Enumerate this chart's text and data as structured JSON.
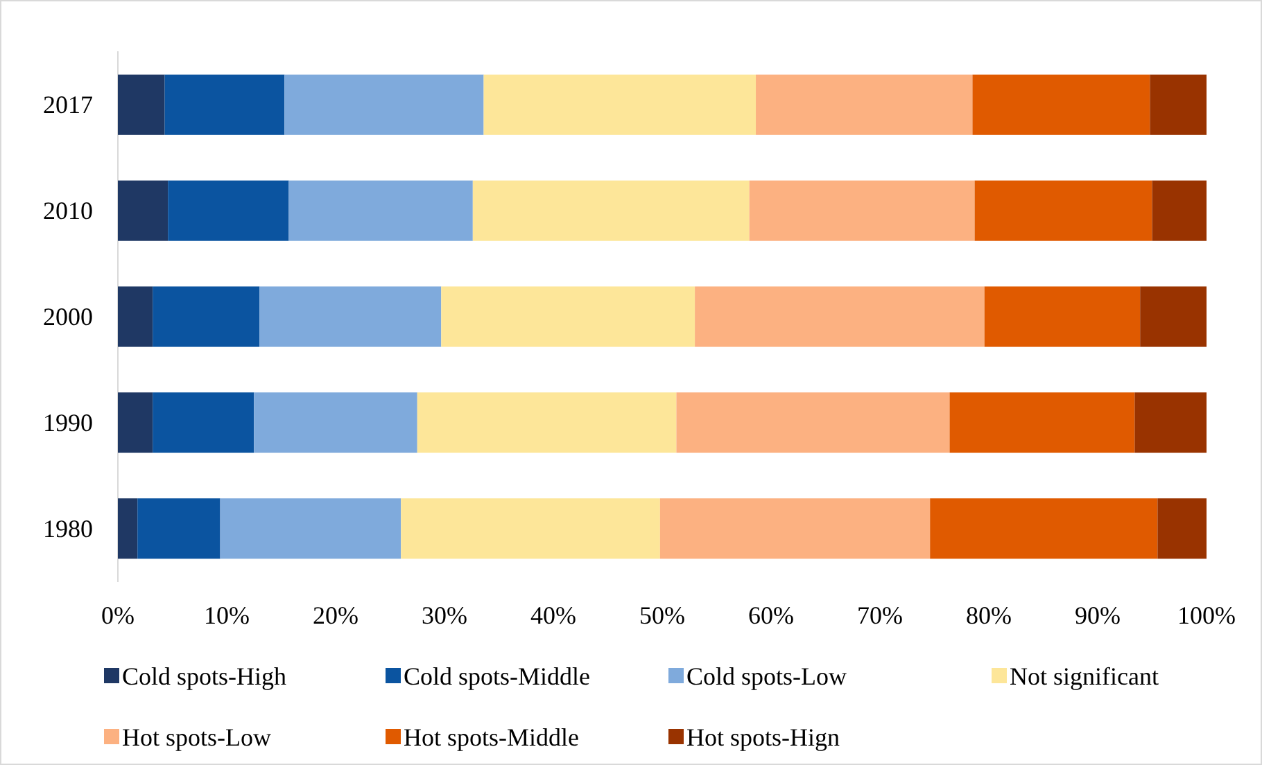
{
  "chart_data": {
    "type": "bar",
    "orientation": "horizontal",
    "stacked": true,
    "categories": [
      "2017",
      "2010",
      "2000",
      "1990",
      "1980"
    ],
    "series": [
      {
        "name": "Cold spots-High",
        "color": "#1f3864",
        "values": [
          4.3,
          4.6,
          3.2,
          3.2,
          1.8
        ]
      },
      {
        "name": "Cold spots-Middle",
        "color": "#0b54a0",
        "values": [
          11.0,
          11.1,
          9.8,
          9.3,
          7.6
        ]
      },
      {
        "name": "Cold spots-Low",
        "color": "#7faadc",
        "values": [
          18.3,
          16.9,
          16.7,
          15.0,
          16.6
        ]
      },
      {
        "name": "Not significant",
        "color": "#fde699",
        "values": [
          25.0,
          25.4,
          23.3,
          23.8,
          23.8
        ]
      },
      {
        "name": "Hot spots-Low",
        "color": "#fcb181",
        "values": [
          19.9,
          20.7,
          26.6,
          25.1,
          24.8
        ]
      },
      {
        "name": "Hot spots-Middle",
        "color": "#e05a00",
        "values": [
          16.3,
          16.3,
          14.3,
          17.0,
          20.9
        ]
      },
      {
        "name": "Hot spots-Hign",
        "color": "#993300",
        "values": [
          5.2,
          5.0,
          6.1,
          6.6,
          4.5
        ]
      }
    ],
    "xlim": [
      0,
      100
    ],
    "xticks": [
      {
        "value": 0,
        "label": "0%"
      },
      {
        "value": 10,
        "label": "10%"
      },
      {
        "value": 20,
        "label": "20%"
      },
      {
        "value": 30,
        "label": "30%"
      },
      {
        "value": 40,
        "label": "40%"
      },
      {
        "value": 50,
        "label": "50%"
      },
      {
        "value": 60,
        "label": "60%"
      },
      {
        "value": 70,
        "label": "70%"
      },
      {
        "value": 80,
        "label": "80%"
      },
      {
        "value": 90,
        "label": "90%"
      },
      {
        "value": 100,
        "label": "100%"
      }
    ],
    "grid": false,
    "legend": "bottom"
  }
}
